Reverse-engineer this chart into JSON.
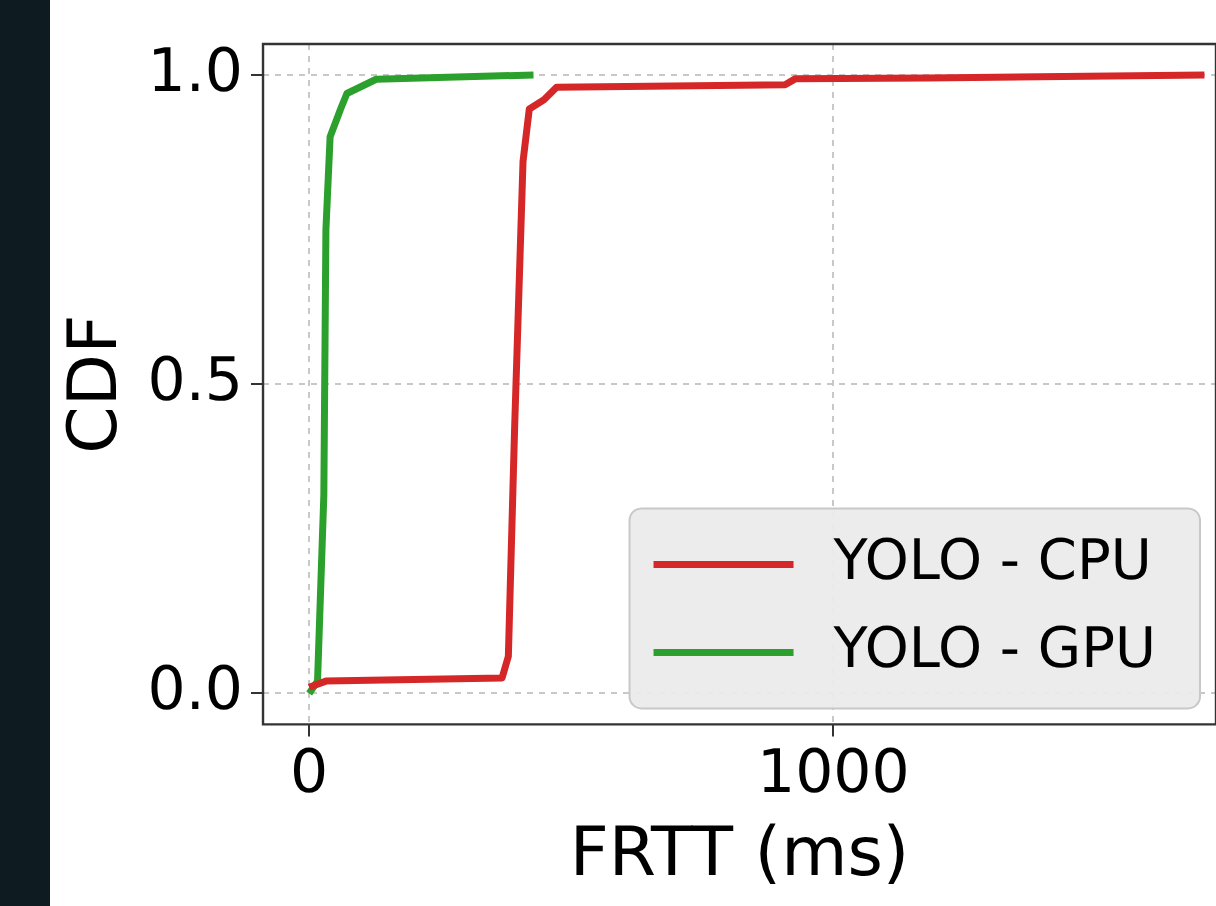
{
  "chart_data": {
    "type": "line",
    "xlabel": "FRTT (ms)",
    "ylabel": "CDF",
    "xlim": [
      -88,
      1730
    ],
    "ylim": [
      -0.05,
      1.05
    ],
    "xticks": [
      0,
      1000
    ],
    "yticks": [
      {
        "value": 0,
        "label": "0.0"
      },
      {
        "value": 0.5,
        "label": "0.5"
      },
      {
        "value": 1,
        "label": "1.0"
      }
    ],
    "grid": true,
    "legend": "bottom right",
    "marker": "none",
    "line_style": "solid",
    "series": [
      {
        "name": "YOLO - CPU",
        "color": "#d62728",
        "x": [
          0,
          32,
          368,
          380,
          392,
          408,
          420,
          448,
          472,
          908,
          928,
          1180,
          1708
        ],
        "values": [
          0.01,
          0.02,
          0.025,
          0.06,
          0.43,
          0.86,
          0.945,
          0.96,
          0.98,
          0.984,
          0.994,
          0.995,
          1.0
        ]
      },
      {
        "name": "YOLO - GPU",
        "color": "#2ca02c",
        "x": [
          0,
          16,
          28,
          32,
          40,
          60,
          72,
          128,
          428
        ],
        "values": [
          0,
          0.02,
          0.32,
          0.75,
          0.9,
          0.945,
          0.97,
          0.993,
          1.0
        ]
      }
    ]
  }
}
